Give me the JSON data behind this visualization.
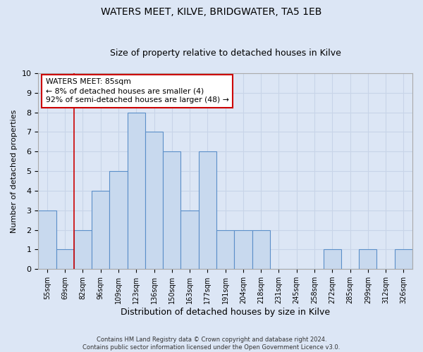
{
  "title": "WATERS MEET, KILVE, BRIDGWATER, TA5 1EB",
  "subtitle": "Size of property relative to detached houses in Kilve",
  "xlabel": "Distribution of detached houses by size in Kilve",
  "ylabel": "Number of detached properties",
  "footer_line1": "Contains HM Land Registry data © Crown copyright and database right 2024.",
  "footer_line2": "Contains public sector information licensed under the Open Government Licence v3.0.",
  "annotation_title": "WATERS MEET: 85sqm",
  "annotation_line1": "← 8% of detached houses are smaller (4)",
  "annotation_line2": "92% of semi-detached houses are larger (48) →",
  "bar_labels": [
    "55sqm",
    "69sqm",
    "82sqm",
    "96sqm",
    "109sqm",
    "123sqm",
    "136sqm",
    "150sqm",
    "163sqm",
    "177sqm",
    "191sqm",
    "204sqm",
    "218sqm",
    "231sqm",
    "245sqm",
    "258sqm",
    "272sqm",
    "285sqm",
    "299sqm",
    "312sqm",
    "326sqm"
  ],
  "bar_values": [
    3,
    1,
    2,
    4,
    5,
    8,
    7,
    6,
    3,
    6,
    2,
    2,
    2,
    0,
    0,
    0,
    1,
    0,
    1,
    0,
    1
  ],
  "bar_color": "#c8d9ee",
  "bar_edge_color": "#5b8fc9",
  "red_line_x": 1.5,
  "ylim": [
    0,
    10
  ],
  "yticks": [
    0,
    1,
    2,
    3,
    4,
    5,
    6,
    7,
    8,
    9,
    10
  ],
  "annotation_box_color": "#ffffff",
  "annotation_box_edgecolor": "#cc0000",
  "grid_color": "#c8d4e8",
  "bg_color": "#dce6f5",
  "plot_bg_color": "#dce6f5",
  "title_fontsize": 10,
  "subtitle_fontsize": 9
}
